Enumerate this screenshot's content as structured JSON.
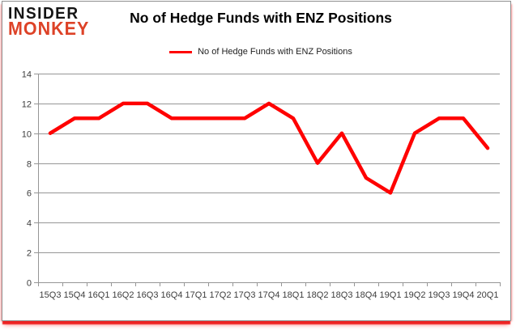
{
  "logo": {
    "line1": "INSIDER",
    "line2": "MONKEY",
    "accent_color": "#dd4227"
  },
  "title": "No of Hedge Funds with ENZ Positions",
  "legend": {
    "label": "No of Hedge Funds with ENZ Positions",
    "line_color": "#ff0000"
  },
  "chart_data": {
    "type": "line",
    "title": "No of Hedge Funds with ENZ Positions",
    "categories": [
      "15Q3",
      "15Q4",
      "16Q1",
      "16Q2",
      "16Q3",
      "16Q4",
      "17Q1",
      "17Q2",
      "17Q3",
      "17Q4",
      "18Q1",
      "18Q2",
      "18Q3",
      "18Q4",
      "19Q1",
      "19Q2",
      "19Q3",
      "19Q4",
      "20Q1"
    ],
    "series": [
      {
        "name": "No of Hedge Funds with ENZ Positions",
        "color": "#ff0000",
        "values": [
          10,
          11,
          11,
          12,
          12,
          11,
          11,
          11,
          11,
          12,
          11,
          8,
          10,
          7,
          6,
          10,
          11,
          11,
          9
        ]
      }
    ],
    "xlabel": "",
    "ylabel": "",
    "ylim": [
      0,
      14
    ],
    "ytick_step": 2,
    "grid": true,
    "legend_position": "top-center"
  },
  "colors": {
    "grid": "#969696",
    "axis": "#969696",
    "tick_label": "#3c3c3c",
    "background": "#ffffff"
  }
}
